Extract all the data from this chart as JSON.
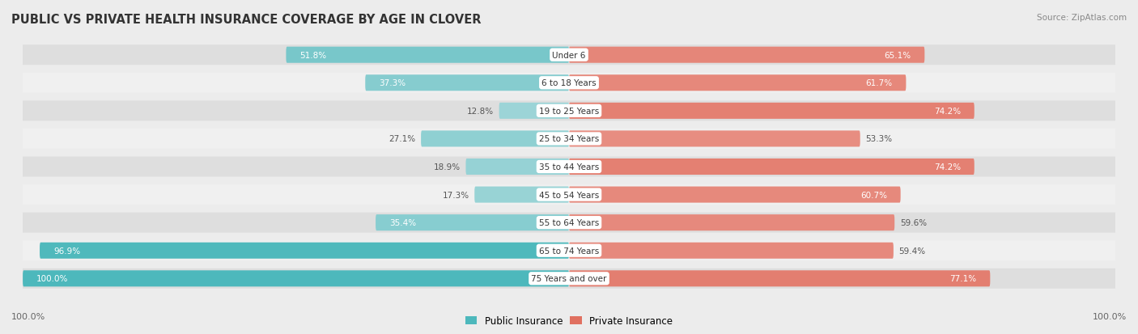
{
  "title": "PUBLIC VS PRIVATE HEALTH INSURANCE COVERAGE BY AGE IN CLOVER",
  "source": "Source: ZipAtlas.com",
  "categories": [
    "Under 6",
    "6 to 18 Years",
    "19 to 25 Years",
    "25 to 34 Years",
    "35 to 44 Years",
    "45 to 54 Years",
    "55 to 64 Years",
    "65 to 74 Years",
    "75 Years and over"
  ],
  "public": [
    51.8,
    37.3,
    12.8,
    27.1,
    18.9,
    17.3,
    35.4,
    96.9,
    100.0
  ],
  "private": [
    65.1,
    61.7,
    74.2,
    53.3,
    74.2,
    60.7,
    59.6,
    59.4,
    77.1
  ],
  "public_color_high": "#4db8bc",
  "public_color_low": "#a8d9db",
  "private_color_high": "#e07060",
  "private_color_low": "#f0b0a8",
  "bg_color": "#ececec",
  "row_bg_dark": "#dedede",
  "row_bg_light": "#f0f0f0",
  "label_white": "#ffffff",
  "label_dark": "#555555",
  "title_color": "#333333",
  "source_color": "#888888",
  "legend_public": "Public Insurance",
  "legend_private": "Private Insurance",
  "axis_label": "100.0%",
  "max_val": 100.0
}
